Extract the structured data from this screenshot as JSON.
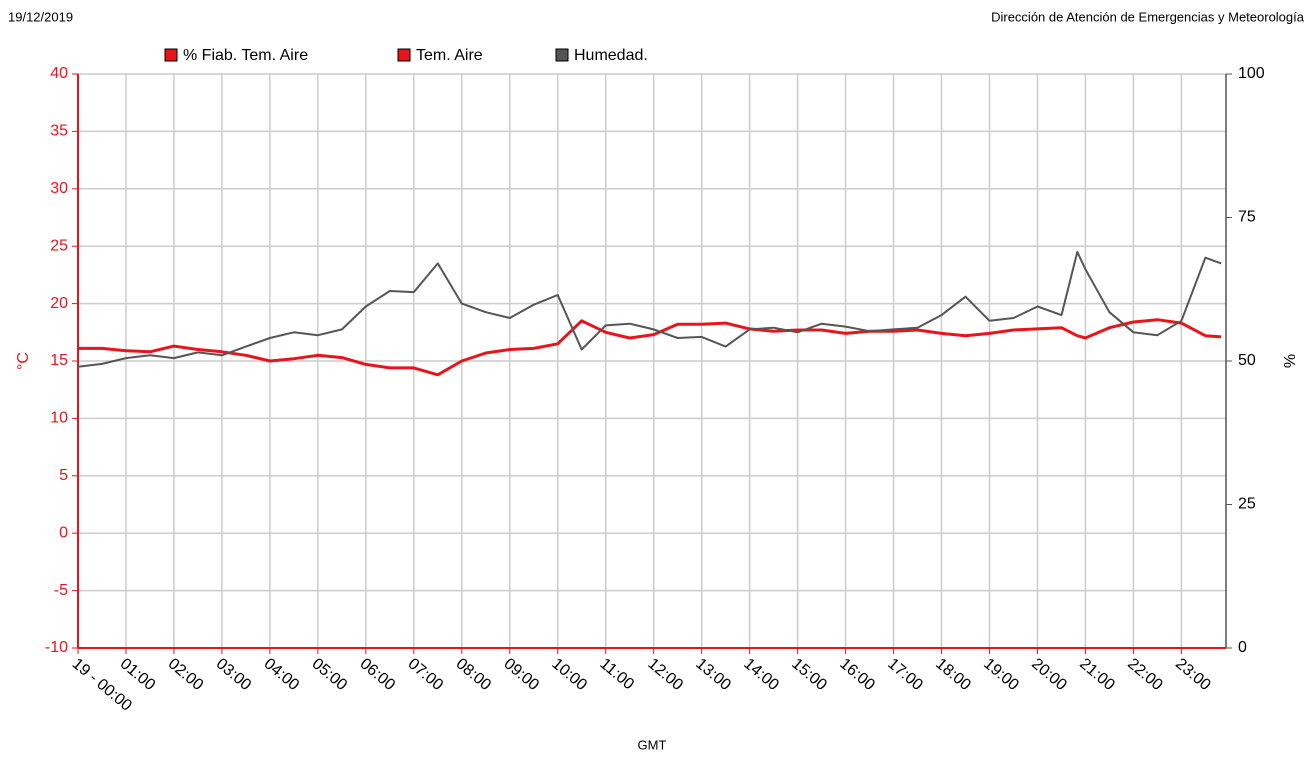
{
  "chart_data": {
    "type": "line",
    "date": "19/12/2019",
    "source": "Dirección de Atención de Emergencias y Meteorología",
    "xlabel": "GMT",
    "ylabel": "°C",
    "y2label": "%",
    "xlim": [
      0,
      23.93
    ],
    "xticks": [
      {
        "value": 0,
        "label": "19 - 00:00"
      },
      {
        "value": 1,
        "label": "01:00"
      },
      {
        "value": 2,
        "label": "02:00"
      },
      {
        "value": 3,
        "label": "03:00"
      },
      {
        "value": 4,
        "label": "04:00"
      },
      {
        "value": 5,
        "label": "05:00"
      },
      {
        "value": 6,
        "label": "06:00"
      },
      {
        "value": 7,
        "label": "07:00"
      },
      {
        "value": 8,
        "label": "08:00"
      },
      {
        "value": 9,
        "label": "09:00"
      },
      {
        "value": 10,
        "label": "10:00"
      },
      {
        "value": 11,
        "label": "11:00"
      },
      {
        "value": 12,
        "label": "12:00"
      },
      {
        "value": 13,
        "label": "13:00"
      },
      {
        "value": 14,
        "label": "14:00"
      },
      {
        "value": 15,
        "label": "15:00"
      },
      {
        "value": 16,
        "label": "16:00"
      },
      {
        "value": 17,
        "label": "17:00"
      },
      {
        "value": 18,
        "label": "18:00"
      },
      {
        "value": 19,
        "label": "19:00"
      },
      {
        "value": 20,
        "label": "20:00"
      },
      {
        "value": 21,
        "label": "21:00"
      },
      {
        "value": 22,
        "label": "22:00"
      },
      {
        "value": 23,
        "label": "23:00"
      }
    ],
    "ylim": [
      -10,
      40
    ],
    "yticks": [
      -10,
      -5,
      0,
      5,
      10,
      15,
      20,
      25,
      30,
      35,
      40
    ],
    "y2lim": [
      0,
      100
    ],
    "y2ticks": [
      0,
      25,
      50,
      75,
      100
    ],
    "grid": true,
    "x": [
      0,
      0.5,
      1,
      1.5,
      2,
      2.5,
      3,
      3.5,
      4,
      4.5,
      5,
      5.5,
      6,
      6.5,
      7,
      7.5,
      8,
      8.5,
      9,
      9.5,
      10,
      10.5,
      11,
      11.5,
      12,
      12.5,
      13,
      13.5,
      14,
      14.5,
      15,
      15.5,
      16,
      16.5,
      17,
      17.5,
      18,
      18.5,
      19,
      19.5,
      20,
      20.5,
      20.83,
      21,
      21.5,
      22,
      22.5,
      23,
      23.5,
      23.83
    ],
    "series": [
      {
        "name": "% Fiab. Tem. Aire",
        "color": "#e8141c",
        "values": [
          null,
          null,
          null,
          null,
          null,
          null,
          null,
          null,
          null,
          null,
          null,
          null,
          null,
          null,
          null,
          null,
          null,
          null,
          null,
          null,
          null,
          null,
          null,
          null,
          null,
          null,
          null,
          null,
          null,
          null,
          null,
          null,
          null,
          null,
          null,
          null,
          null,
          null,
          null,
          null,
          null,
          null,
          null,
          null,
          null,
          null,
          null,
          null,
          null,
          null
        ]
      },
      {
        "name": "Tem. Aire",
        "color": "#e8141c",
        "values": [
          16.1,
          16.1,
          15.9,
          15.8,
          16.3,
          16.0,
          15.8,
          15.5,
          15.0,
          15.2,
          15.5,
          15.3,
          14.7,
          14.4,
          14.4,
          13.8,
          15.0,
          15.7,
          16.0,
          16.1,
          16.5,
          18.5,
          17.5,
          17.0,
          17.3,
          18.2,
          18.2,
          18.3,
          17.8,
          17.6,
          17.7,
          17.7,
          17.4,
          17.6,
          17.6,
          17.7,
          17.4,
          17.2,
          17.4,
          17.7,
          17.8,
          17.9,
          17.2,
          17.0,
          17.9,
          18.4,
          18.6,
          18.3,
          17.2,
          17.1
        ]
      },
      {
        "name": "Humedad.",
        "color": "#555555",
        "axis": "y2",
        "values": [
          49,
          49.5,
          50.5,
          51,
          50.5,
          51.5,
          51,
          52.5,
          54,
          55,
          54.5,
          55.5,
          59.5,
          62.2,
          62,
          67,
          60,
          58.5,
          57.5,
          59.8,
          61.5,
          52,
          56.2,
          56.5,
          55.5,
          54,
          54.2,
          52.5,
          55.5,
          55.8,
          55,
          56.5,
          56,
          55.2,
          55.5,
          55.8,
          58,
          61.2,
          57,
          57.5,
          59.5,
          58,
          69,
          66,
          58.5,
          55,
          54.5,
          57,
          68,
          67
        ]
      }
    ]
  }
}
